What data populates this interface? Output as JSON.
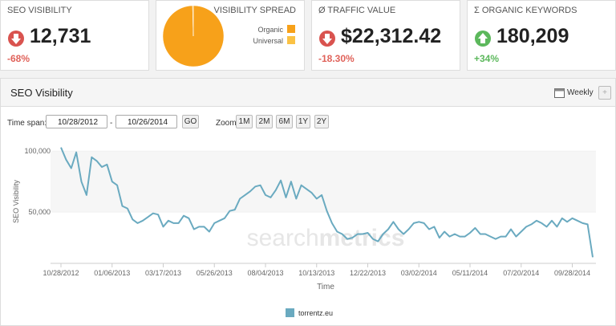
{
  "cards": [
    {
      "title": "SEO VISIBILITY",
      "value": "12,731",
      "change": "-68%"
    },
    {
      "title": "VISIBILITY SPREAD"
    },
    {
      "title": "Ø TRAFFIC VALUE",
      "value": "$22,312.42",
      "change": "-18.30%"
    },
    {
      "title": "Σ ORGANIC KEYWORDS",
      "value": "180,209",
      "change": "+34%"
    }
  ],
  "panel": {
    "title": "SEO Visibility",
    "interval": "Weekly",
    "time_span_label": "Time span:",
    "date_from": "10/28/2012",
    "date_separator": "-",
    "date_to": "10/26/2014",
    "go": "GO",
    "zoom_label": "Zoom:",
    "zoom_options": [
      "1M",
      "2M",
      "6M",
      "1Y",
      "2Y"
    ],
    "watermark": [
      "search",
      "metrics"
    ]
  },
  "chart_data": [
    {
      "type": "pie",
      "categories": [
        "Organic",
        "Universal"
      ],
      "values": [
        99.6,
        0.4
      ],
      "colors": [
        "#f7a11a",
        "#fbc244"
      ]
    },
    {
      "type": "line",
      "x_label": "Time",
      "y_label": "SEO Visibility",
      "categories": [
        "10/28/2012",
        null,
        null,
        null,
        null,
        null,
        null,
        null,
        null,
        null,
        "01/06/2013",
        null,
        null,
        null,
        null,
        null,
        null,
        null,
        null,
        null,
        "03/17/2013",
        null,
        null,
        null,
        null,
        null,
        null,
        null,
        null,
        null,
        "05/26/2013",
        null,
        null,
        null,
        null,
        null,
        null,
        null,
        null,
        null,
        "08/04/2013",
        null,
        null,
        null,
        null,
        null,
        null,
        null,
        null,
        null,
        "10/13/2013",
        null,
        null,
        null,
        null,
        null,
        null,
        null,
        null,
        null,
        "12/22/2013",
        null,
        null,
        null,
        null,
        null,
        null,
        null,
        null,
        null,
        "03/02/2014",
        null,
        null,
        null,
        null,
        null,
        null,
        null,
        null,
        null,
        "05/11/2014",
        null,
        null,
        null,
        null,
        null,
        null,
        null,
        null,
        null,
        "07/20/2014",
        null,
        null,
        null,
        null,
        null,
        null,
        null,
        null,
        null,
        "09/28/2014",
        null,
        null,
        null,
        null
      ],
      "series": [
        {
          "name": "torrentz.eu",
          "color": "#6aaac0",
          "values": [
            103000,
            93000,
            86000,
            99000,
            75000,
            64000,
            95000,
            92000,
            87000,
            89000,
            75000,
            72000,
            55000,
            53000,
            44000,
            41000,
            43000,
            46000,
            49000,
            48000,
            38000,
            43000,
            41000,
            41000,
            47000,
            45000,
            36000,
            38000,
            38000,
            34000,
            41000,
            43000,
            45000,
            51000,
            52000,
            61000,
            64000,
            67000,
            71000,
            72000,
            64000,
            62000,
            68000,
            76000,
            62000,
            75000,
            61000,
            72000,
            69000,
            66000,
            61000,
            64000,
            51000,
            41000,
            34000,
            32000,
            28000,
            29000,
            32000,
            32000,
            33000,
            28000,
            26000,
            32000,
            36000,
            42000,
            36000,
            32000,
            36000,
            41000,
            42000,
            41000,
            36000,
            38000,
            29000,
            34000,
            30000,
            32000,
            30000,
            30000,
            33000,
            37000,
            32000,
            32000,
            30000,
            28000,
            30000,
            30000,
            36000,
            30000,
            34000,
            38000,
            40000,
            43000,
            41000,
            38000,
            43000,
            38000,
            45000,
            42000,
            45000,
            43000,
            41000,
            40000,
            13000
          ]
        }
      ],
      "ylim": [
        8000,
        110000
      ],
      "yticks": [
        {
          "value": 50000,
          "label": "50,000"
        },
        {
          "value": 100000,
          "label": "100,000"
        }
      ],
      "grid": true
    }
  ]
}
